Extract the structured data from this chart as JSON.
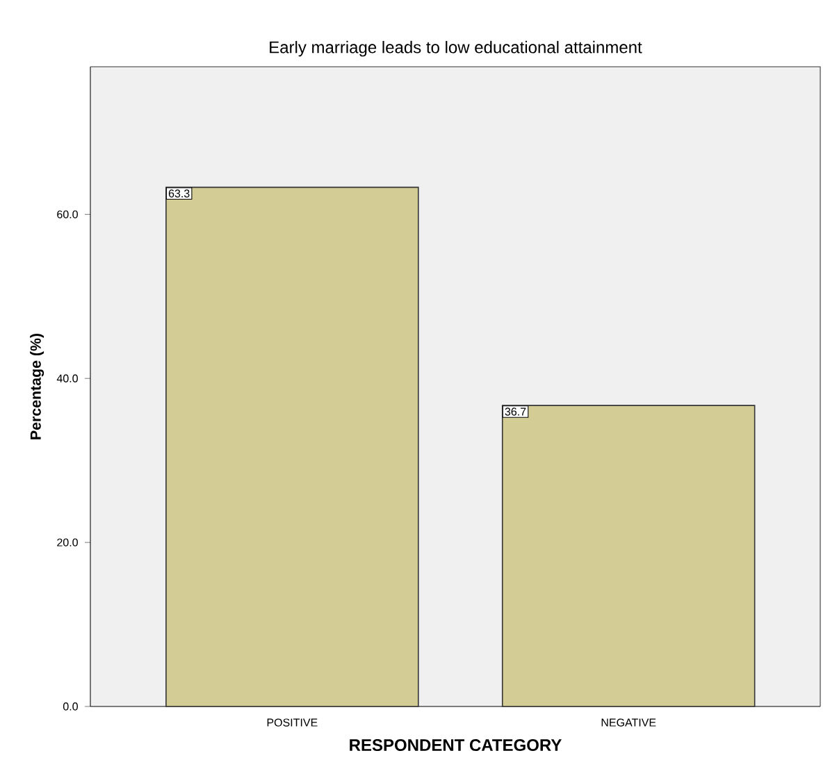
{
  "chart_data": {
    "type": "bar",
    "title": "Early marriage leads to low educational attainment",
    "xlabel": "RESPONDENT CATEGORY",
    "ylabel": "Percentage (%)",
    "categories": [
      "POSITIVE",
      "NEGATIVE"
    ],
    "values": [
      63.3,
      36.7
    ],
    "color": "#d3cd95",
    "data_labels": true,
    "ylim": [
      0,
      78
    ],
    "yticks": [
      {
        "value": 0,
        "label": "0.0"
      },
      {
        "value": 20,
        "label": "20.0"
      },
      {
        "value": 40,
        "label": "40.0"
      },
      {
        "value": 60,
        "label": "60.0"
      }
    ]
  }
}
